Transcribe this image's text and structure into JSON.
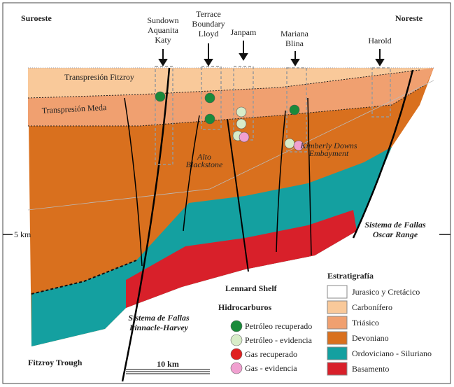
{
  "direction_labels": {
    "southwest": "Suroeste",
    "northeast": "Noreste"
  },
  "wells": [
    {
      "lines": [
        "Sundown",
        "Aquanita",
        "Katy"
      ]
    },
    {
      "lines": [
        "Terrace",
        "Boundary",
        "Lloyd"
      ]
    },
    {
      "lines": [
        "Janpam"
      ]
    },
    {
      "lines": [
        "Mariana",
        "Blina"
      ]
    },
    {
      "lines": [
        "Harold"
      ]
    }
  ],
  "section_labels": {
    "fitzroy_transpression": "Transpresión Fitzroy",
    "meda_transpression": "Transpresión Meda",
    "blackstone_high": [
      "Alto",
      "Blackstone"
    ],
    "kimberly_downs": [
      "Kimberly Downs",
      "Embayment"
    ]
  },
  "depth_label": "5 km",
  "fault_systems": [
    {
      "lines": [
        "Sistema de Fallas",
        "Oscar Range"
      ]
    },
    {
      "lines": [
        "Sistema de Fallas",
        "Pinnacle-Harvey"
      ]
    }
  ],
  "regions": {
    "lennard_shelf": "Lennard Shelf",
    "fitzroy_trough": "Fitzroy Trough"
  },
  "scale_bar": "10 km",
  "stratigraphy_legend": {
    "title": "Estratigrafía",
    "items": [
      "Jurasico y Cretácico",
      "Carbonífero",
      "Triásico",
      "Devoniano",
      "Ordoviciano - Siluriano",
      "Basamento"
    ]
  },
  "hydrocarbon_legend": {
    "title": "Hidrocarburos",
    "items": [
      "Petróleo recuperado",
      "Petróleo - evidencia",
      "Gas recuperado",
      "Gas - evidencia"
    ]
  }
}
